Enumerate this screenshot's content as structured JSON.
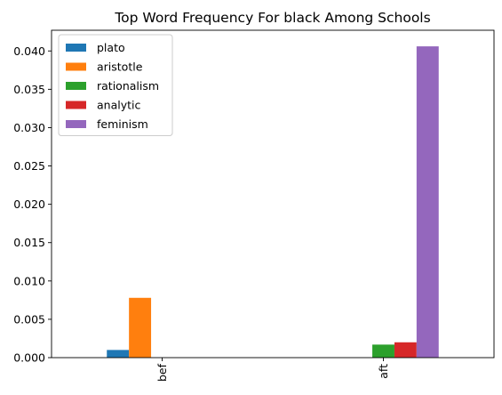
{
  "chart_data": {
    "type": "bar",
    "title": "Top Word Frequency For black Among Schools",
    "xlabel": "",
    "ylabel": "",
    "categories": [
      "bef",
      "aft"
    ],
    "series": [
      {
        "name": "plato",
        "color": "#1f77b4",
        "values": [
          0.001,
          0.0
        ]
      },
      {
        "name": "aristotle",
        "color": "#ff7f0e",
        "values": [
          0.0078,
          0.0
        ]
      },
      {
        "name": "rationalism",
        "color": "#2ca02c",
        "values": [
          0.0,
          0.0017
        ]
      },
      {
        "name": "analytic",
        "color": "#d62728",
        "values": [
          0.0,
          0.002
        ]
      },
      {
        "name": "feminism",
        "color": "#9467bd",
        "values": [
          0.0,
          0.0406
        ]
      }
    ],
    "ylim": [
      0,
      0.0427
    ],
    "yticks": [
      "0.000",
      "0.005",
      "0.010",
      "0.015",
      "0.020",
      "0.025",
      "0.030",
      "0.035",
      "0.040"
    ],
    "legend": "top-left",
    "grid": false
  }
}
